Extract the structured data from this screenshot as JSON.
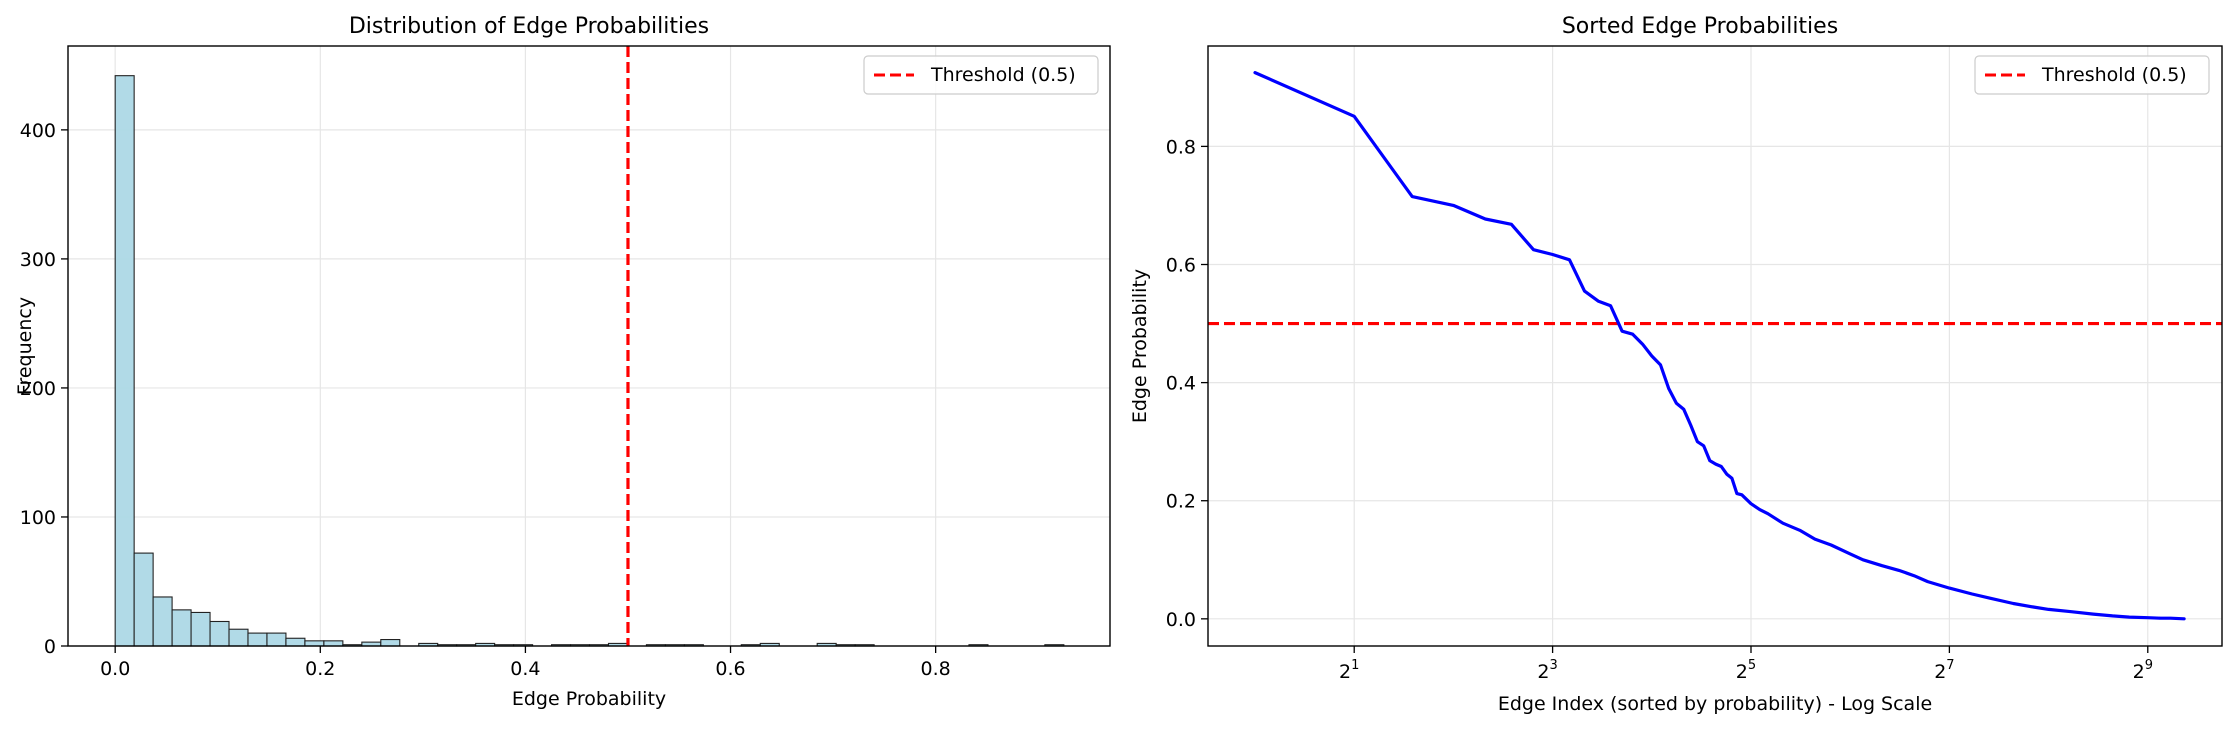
{
  "chart_data": [
    {
      "type": "bar",
      "title": "Distribution of Edge Probabilities",
      "xlabel": "Edge Probability",
      "ylabel": "Frequency",
      "xlim": [
        -0.046,
        0.97
      ],
      "ylim": [
        0,
        465
      ],
      "grid": true,
      "legend_position": "top-right",
      "x_ticks": [
        0.0,
        0.2,
        0.4,
        0.6,
        0.8
      ],
      "x_tick_labels": [
        "0.0",
        "0.2",
        "0.4",
        "0.6",
        "0.8"
      ],
      "y_ticks": [
        0,
        100,
        200,
        300,
        400
      ],
      "y_tick_labels": [
        "0",
        "100",
        "200",
        "300",
        "400"
      ],
      "bar_color": "#add8e6",
      "bar_edge_color": "#222222",
      "bin_start": 0.0,
      "bin_width": 0.0185,
      "values": [
        442,
        72,
        38,
        28,
        26,
        19,
        13,
        10,
        10,
        6,
        4,
        4,
        1,
        3,
        5,
        0,
        2,
        1,
        1,
        2,
        1,
        1,
        0,
        1,
        1,
        1,
        2,
        0,
        1,
        1,
        1,
        0,
        0,
        1,
        2,
        0,
        0,
        2,
        1,
        1,
        0,
        0,
        0,
        0,
        0,
        1,
        0,
        0,
        0,
        1
      ],
      "series": [
        {
          "name": "Threshold (0.5)",
          "kind": "vline",
          "x": 0.5,
          "color": "#ff0000",
          "style": "dashed"
        }
      ]
    },
    {
      "type": "line",
      "title": "Sorted Edge Probabilities",
      "xlabel": "Edge Index (sorted by probability) - Log Scale",
      "ylabel": "Edge Probability",
      "x_scale": "log2",
      "xlim": [
        0.72,
        860
      ],
      "ylim": [
        -0.046,
        0.97
      ],
      "grid": true,
      "legend_position": "top-right",
      "x_ticks": [
        2,
        8,
        32,
        128,
        512
      ],
      "x_tick_labels": [
        {
          "base": "2",
          "exp": "1"
        },
        {
          "base": "2",
          "exp": "3"
        },
        {
          "base": "2",
          "exp": "5"
        },
        {
          "base": "2",
          "exp": "7"
        },
        {
          "base": "2",
          "exp": "9"
        }
      ],
      "y_ticks": [
        0.0,
        0.2,
        0.4,
        0.6,
        0.8
      ],
      "y_tick_labels": [
        "0.0",
        "0.2",
        "0.4",
        "0.6",
        "0.8"
      ],
      "series": [
        {
          "name": "",
          "kind": "line",
          "color": "#0000ff",
          "x": [
            1,
            2,
            3,
            4,
            5,
            6,
            7,
            8,
            9,
            10,
            11,
            12,
            13,
            14,
            15,
            16,
            17,
            18,
            19,
            20,
            21,
            22,
            23,
            24,
            25,
            26,
            27,
            28,
            29,
            30,
            32,
            34,
            36,
            40,
            45,
            50,
            56,
            64,
            70,
            80,
            90,
            100,
            110,
            128,
            150,
            170,
            200,
            230,
            256,
            300,
            350,
            400,
            450,
            512,
            560,
            600,
            660
          ],
          "y": [
            0.925,
            0.851,
            0.715,
            0.7,
            0.677,
            0.668,
            0.625,
            0.617,
            0.608,
            0.555,
            0.538,
            0.53,
            0.487,
            0.482,
            0.465,
            0.445,
            0.43,
            0.39,
            0.365,
            0.355,
            0.328,
            0.3,
            0.293,
            0.268,
            0.262,
            0.258,
            0.245,
            0.238,
            0.212,
            0.21,
            0.195,
            0.185,
            0.178,
            0.162,
            0.15,
            0.135,
            0.125,
            0.11,
            0.1,
            0.09,
            0.082,
            0.073,
            0.063,
            0.052,
            0.042,
            0.035,
            0.026,
            0.02,
            0.016,
            0.012,
            0.008,
            0.005,
            0.003,
            0.002,
            0.001,
            0.001,
            0.0
          ]
        },
        {
          "name": "Threshold (0.5)",
          "kind": "hline",
          "y": 0.5,
          "color": "#ff0000",
          "style": "dashed"
        }
      ]
    }
  ]
}
